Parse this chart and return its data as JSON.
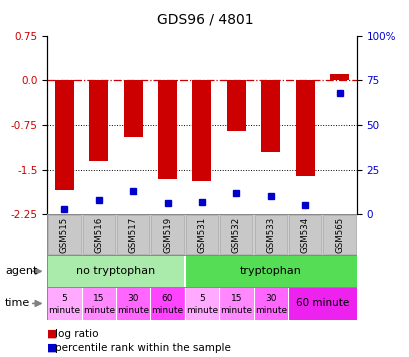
{
  "title": "GDS96 / 4801",
  "samples": [
    "GSM515",
    "GSM516",
    "GSM517",
    "GSM519",
    "GSM531",
    "GSM532",
    "GSM533",
    "GSM534",
    "GSM565"
  ],
  "log_ratio": [
    -1.85,
    -1.35,
    -0.95,
    -1.65,
    -1.7,
    -0.85,
    -1.2,
    -1.6,
    0.1
  ],
  "percentile_rank": [
    3,
    8,
    13,
    6,
    7,
    12,
    10,
    5,
    68
  ],
  "ylim_left": [
    -2.25,
    0.75
  ],
  "ylim_right": [
    0,
    100
  ],
  "yticks_left": [
    0.75,
    0.0,
    -0.75,
    -1.5,
    -2.25
  ],
  "yticks_right": [
    100,
    75,
    50,
    25,
    0
  ],
  "dotted_lines": [
    -0.75,
    -1.5
  ],
  "bar_color": "#cc0000",
  "dot_color": "#0000cc",
  "agent_no_tryp_color": "#aaeaaa",
  "agent_tryp_color": "#55dd55",
  "time_segment_colors": [
    "#ffaaff",
    "#ff88ff",
    "#ff66ff",
    "#ff44ff",
    "#ffaaff",
    "#ff88ff",
    "#ff66ff",
    "#ee22ee"
  ],
  "time_labels_top": [
    "5",
    "15",
    "30",
    "60",
    "5",
    "15",
    "30",
    "60 minute"
  ],
  "time_labels_bot": [
    "minute",
    "minute",
    "minute",
    "minute",
    "minute",
    "minute",
    "minute",
    ""
  ],
  "legend_log_color": "#cc0000",
  "legend_dot_color": "#0000cc",
  "label_color_left": "#cc0000",
  "label_color_right": "#0000cc"
}
